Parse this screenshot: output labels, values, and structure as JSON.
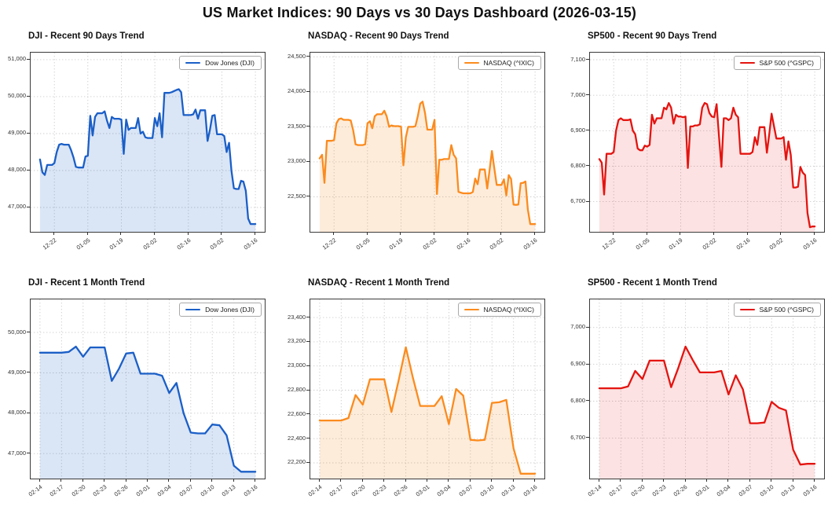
{
  "page": {
    "title": "US Market Indices: 90 Days vs 30 Days Dashboard (2026-03-15)"
  },
  "chart_data": [
    {
      "id": "dji-90d",
      "type": "area",
      "title": "DJI - Recent 90 Days Trend",
      "legend": "Dow Jones (DJI)",
      "legend_pos": "top-right",
      "grid": true,
      "line_color": "#1b5fc7",
      "fill_color": "rgba(27,95,199,0.16)",
      "ylim": [
        46340,
        51190
      ],
      "yticks": [
        47000,
        48000,
        49000,
        50000,
        51000
      ],
      "xtick_labels": [
        "12-22",
        "01-05",
        "01-19",
        "02-02",
        "02-16",
        "03-02",
        "03-16"
      ],
      "xtick_indices": [
        6,
        20,
        34,
        48,
        62,
        76,
        90
      ],
      "values": [
        48300,
        47950,
        47880,
        48150,
        48150,
        48150,
        48200,
        48500,
        48700,
        48720,
        48700,
        48700,
        48700,
        48550,
        48350,
        48100,
        48080,
        48080,
        48080,
        48380,
        48400,
        49480,
        48950,
        49450,
        49550,
        49550,
        49550,
        49600,
        49350,
        49150,
        49450,
        49400,
        49400,
        49400,
        49380,
        48450,
        49380,
        49100,
        49150,
        49150,
        49150,
        49420,
        49000,
        49050,
        48900,
        48880,
        48880,
        48880,
        49420,
        49200,
        49550,
        48900,
        50100,
        50100,
        50100,
        50120,
        50150,
        50180,
        50200,
        50120,
        49500,
        49500,
        49500,
        49500,
        49520,
        49650,
        49400,
        49630,
        49630,
        49630,
        48800,
        49100,
        49480,
        49500,
        48980,
        48980,
        48980,
        48930,
        48500,
        48750,
        48000,
        47520,
        47500,
        47500,
        47720,
        47700,
        47450,
        46700,
        46550,
        46550,
        46550
      ]
    },
    {
      "id": "nasdaq-90d",
      "type": "area",
      "title": "NASDAQ - Recent 90 Days Trend",
      "legend": "NASDAQ (^IXIC)",
      "legend_pos": "top-right",
      "grid": true,
      "line_color": "#fb8b1e",
      "fill_color": "rgba(251,139,30,0.16)",
      "ylim": [
        22000,
        24560
      ],
      "yticks": [
        22500,
        23000,
        23500,
        24000,
        24500
      ],
      "xtick_labels": [
        "12-22",
        "01-05",
        "01-19",
        "02-02",
        "02-16",
        "03-02",
        "03-16"
      ],
      "xtick_indices": [
        6,
        20,
        34,
        48,
        62,
        76,
        90
      ],
      "values": [
        23050,
        23100,
        22700,
        23300,
        23300,
        23300,
        23310,
        23550,
        23610,
        23620,
        23600,
        23600,
        23600,
        23590,
        23450,
        23250,
        23240,
        23240,
        23240,
        23250,
        23550,
        23580,
        23480,
        23650,
        23680,
        23680,
        23680,
        23730,
        23650,
        23500,
        23520,
        23510,
        23510,
        23510,
        23500,
        22950,
        23350,
        23500,
        23500,
        23500,
        23510,
        23650,
        23830,
        23860,
        23700,
        23460,
        23460,
        23460,
        23600,
        22540,
        23030,
        23030,
        23040,
        23040,
        23040,
        23240,
        23100,
        23050,
        22570,
        22560,
        22550,
        22550,
        22550,
        22550,
        22570,
        22760,
        22680,
        22890,
        22890,
        22890,
        22620,
        22880,
        23155,
        22900,
        22670,
        22670,
        22670,
        22750,
        22520,
        22810,
        22755,
        22390,
        22385,
        22390,
        22695,
        22700,
        22720,
        22320,
        22110,
        22110,
        22110
      ]
    },
    {
      "id": "sp500-90d",
      "type": "area",
      "title": "SP500 - Recent 90 Days Trend",
      "legend": "S&P 500 (^GSPC)",
      "legend_pos": "top-right",
      "grid": true,
      "line_color": "#e41410",
      "fill_color": "rgba(228,20,16,0.12)",
      "ylim": [
        6615,
        7120
      ],
      "yticks": [
        6700,
        6800,
        6900,
        7000,
        7100
      ],
      "xtick_labels": [
        "12-22",
        "01-05",
        "01-19",
        "02-02",
        "02-16",
        "03-02",
        "03-16"
      ],
      "xtick_indices": [
        6,
        20,
        34,
        48,
        62,
        76,
        90
      ],
      "values": [
        6820,
        6810,
        6720,
        6835,
        6835,
        6835,
        6840,
        6900,
        6930,
        6935,
        6930,
        6930,
        6930,
        6932,
        6900,
        6890,
        6850,
        6845,
        6845,
        6858,
        6855,
        6860,
        6945,
        6920,
        6935,
        6935,
        6935,
        6965,
        6960,
        6978,
        6965,
        6920,
        6945,
        6940,
        6940,
        6938,
        6940,
        6795,
        6912,
        6912,
        6915,
        6915,
        6918,
        6965,
        6978,
        6975,
        6950,
        6940,
        6938,
        6975,
        6885,
        6798,
        6935,
        6935,
        6930,
        6935,
        6965,
        6945,
        6938,
        6835,
        6835,
        6835,
        6835,
        6835,
        6840,
        6882,
        6860,
        6910,
        6910,
        6910,
        6838,
        6890,
        6948,
        6912,
        6878,
        6878,
        6878,
        6882,
        6818,
        6870,
        6832,
        6740,
        6740,
        6742,
        6798,
        6782,
        6775,
        6668,
        6628,
        6630,
        6630
      ]
    },
    {
      "id": "dji-1m",
      "type": "area",
      "title": "DJI - Recent 1 Month Trend",
      "legend": "Dow Jones (DJI)",
      "legend_pos": "top-right",
      "grid": true,
      "line_color": "#1b5fc7",
      "fill_color": "rgba(27,95,199,0.16)",
      "ylim": [
        46380,
        50820
      ],
      "yticks": [
        47000,
        48000,
        49000,
        50000
      ],
      "xtick_labels": [
        "02-14",
        "02-17",
        "02-20",
        "02-23",
        "02-26",
        "03-01",
        "03-04",
        "03-07",
        "03-10",
        "03-13",
        "03-16"
      ],
      "xtick_indices": [
        0,
        3,
        6,
        9,
        12,
        15,
        18,
        21,
        24,
        27,
        30
      ],
      "values": [
        49500,
        49500,
        49500,
        49500,
        49520,
        49650,
        49400,
        49630,
        49630,
        49630,
        48800,
        49100,
        49480,
        49500,
        48980,
        48980,
        48980,
        48930,
        48500,
        48750,
        48000,
        47520,
        47500,
        47500,
        47720,
        47700,
        47450,
        46700,
        46550,
        46550,
        46550
      ]
    },
    {
      "id": "nasdaq-1m",
      "type": "area",
      "title": "NASDAQ - Recent 1 Month Trend",
      "legend": "NASDAQ (^IXIC)",
      "legend_pos": "top-right",
      "grid": true,
      "line_color": "#fb8b1e",
      "fill_color": "rgba(251,139,30,0.16)",
      "ylim": [
        22070,
        23550
      ],
      "yticks": [
        22200,
        22400,
        22600,
        22800,
        23000,
        23200,
        23400
      ],
      "xtick_labels": [
        "02-14",
        "02-17",
        "02-20",
        "02-23",
        "02-26",
        "03-01",
        "03-04",
        "03-07",
        "03-10",
        "03-13",
        "03-16"
      ],
      "xtick_indices": [
        0,
        3,
        6,
        9,
        12,
        15,
        18,
        21,
        24,
        27,
        30
      ],
      "values": [
        22550,
        22550,
        22550,
        22550,
        22570,
        22760,
        22680,
        22890,
        22890,
        22890,
        22620,
        22880,
        23155,
        22900,
        22670,
        22670,
        22670,
        22750,
        22520,
        22810,
        22755,
        22390,
        22385,
        22390,
        22695,
        22700,
        22720,
        22320,
        22110,
        22110,
        22110
      ]
    },
    {
      "id": "sp500-1m",
      "type": "area",
      "title": "SP500 - Recent 1 Month Trend",
      "legend": "S&P 500 (^GSPC)",
      "legend_pos": "top-right",
      "grid": true,
      "line_color": "#e41410",
      "fill_color": "rgba(228,20,16,0.12)",
      "ylim": [
        6590,
        7076
      ],
      "yticks": [
        6700,
        6800,
        6900,
        7000
      ],
      "xtick_labels": [
        "02-14",
        "02-17",
        "02-20",
        "02-23",
        "02-26",
        "03-01",
        "03-04",
        "03-07",
        "03-10",
        "03-13",
        "03-16"
      ],
      "xtick_indices": [
        0,
        3,
        6,
        9,
        12,
        15,
        18,
        21,
        24,
        27,
        30
      ],
      "values": [
        6835,
        6835,
        6835,
        6835,
        6840,
        6882,
        6860,
        6910,
        6910,
        6910,
        6838,
        6890,
        6948,
        6912,
        6878,
        6878,
        6878,
        6882,
        6818,
        6870,
        6832,
        6740,
        6740,
        6742,
        6798,
        6782,
        6775,
        6668,
        6628,
        6630,
        6630
      ]
    }
  ]
}
